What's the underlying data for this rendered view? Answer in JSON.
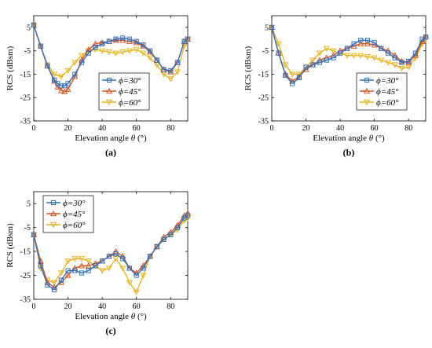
{
  "chart_data": [
    {
      "type": "line",
      "panel_label": "(a)",
      "xlabel_prefix": "Elevation angle ",
      "xlabel_symbol": "θ",
      "xlabel_suffix": " (°)",
      "ylabel": "RCS (dBsm)",
      "xlim": [
        0,
        90
      ],
      "ylim": [
        -35,
        10
      ],
      "xticks": [
        "0",
        "20",
        "40",
        "60",
        "80"
      ],
      "yticks": [
        "-35",
        "-25",
        "-15",
        "-5",
        "5"
      ],
      "legend": "inside-lower-center",
      "series": [
        {
          "name": "ϕ=30°",
          "color": "#2b6fc0",
          "marker": "square",
          "x": [
            0,
            4,
            8,
            12,
            14,
            16,
            18,
            20,
            24,
            28,
            32,
            36,
            40,
            44,
            48,
            52,
            56,
            60,
            64,
            68,
            72,
            76,
            80,
            84,
            88,
            90
          ],
          "y": [
            6,
            -3,
            -11.5,
            -17.5,
            -19,
            -20,
            -20,
            -19,
            -15,
            -10,
            -6,
            -3.5,
            -2,
            -1,
            0,
            0.5,
            0,
            -1,
            -2.5,
            -5,
            -9,
            -13,
            -13.5,
            -10,
            -1,
            0
          ]
        },
        {
          "name": "ϕ=45°",
          "color": "#d9541e",
          "marker": "triangle-up",
          "x": [
            0,
            4,
            8,
            12,
            14,
            16,
            18,
            20,
            24,
            28,
            32,
            36,
            40,
            44,
            48,
            52,
            56,
            60,
            64,
            68,
            72,
            76,
            80,
            84,
            88,
            90
          ],
          "y": [
            6,
            -3,
            -11.5,
            -18,
            -20.5,
            -22,
            -22.5,
            -21.5,
            -16,
            -9,
            -4.5,
            -2,
            -1.5,
            -1,
            -0.5,
            -0.5,
            -1,
            -1.5,
            -3,
            -5.5,
            -9,
            -13,
            -14,
            -10,
            -1,
            0
          ]
        },
        {
          "name": "ϕ=60°",
          "color": "#e8b21a",
          "marker": "triangle-down",
          "x": [
            0,
            4,
            8,
            12,
            16,
            20,
            24,
            28,
            32,
            36,
            40,
            44,
            48,
            52,
            56,
            60,
            64,
            68,
            72,
            76,
            80,
            84,
            88,
            90
          ],
          "y": [
            6,
            -3,
            -11,
            -15,
            -16,
            -13.5,
            -10,
            -7,
            -5,
            -4.5,
            -5,
            -5.5,
            -6,
            -5.5,
            -5,
            -4.5,
            -6,
            -8,
            -11,
            -15,
            -17,
            -14,
            -3,
            0
          ]
        }
      ]
    },
    {
      "type": "line",
      "panel_label": "(b)",
      "xlabel_prefix": "Elevation angle ",
      "xlabel_symbol": "θ",
      "xlabel_suffix": " (°)",
      "ylabel": "RCS (dBsm)",
      "xlim": [
        0,
        90
      ],
      "ylim": [
        -35,
        10
      ],
      "xticks": [
        "0",
        "20",
        "40",
        "60",
        "80"
      ],
      "yticks": [
        "-35",
        "-25",
        "-15",
        "-5",
        "5"
      ],
      "legend": "inside-lower-right",
      "series": [
        {
          "name": "ϕ=30°",
          "color": "#2b6fc0",
          "marker": "square",
          "x": [
            0,
            4,
            8,
            12,
            16,
            20,
            24,
            28,
            32,
            36,
            40,
            44,
            48,
            52,
            56,
            60,
            64,
            68,
            72,
            76,
            80,
            84,
            88,
            90
          ],
          "y": [
            5,
            -6,
            -15.5,
            -19,
            -16.5,
            -12,
            -11,
            -10,
            -9,
            -8,
            -6,
            -4,
            -2,
            -0.5,
            -0.5,
            -1.5,
            -4,
            -6,
            -8,
            -10,
            -9.5,
            -6,
            0,
            1
          ]
        },
        {
          "name": "ϕ=45°",
          "color": "#d9541e",
          "marker": "triangle-up",
          "x": [
            0,
            4,
            8,
            12,
            16,
            20,
            24,
            28,
            32,
            36,
            40,
            44,
            48,
            52,
            56,
            60,
            64,
            68,
            72,
            76,
            80,
            84,
            88,
            90
          ],
          "y": [
            5,
            -6,
            -15,
            -18,
            -16,
            -13,
            -11,
            -9,
            -8,
            -7,
            -5,
            -4,
            -3,
            -2,
            -2,
            -2.5,
            -4,
            -5,
            -7,
            -9.5,
            -10,
            -7,
            -1,
            1
          ]
        },
        {
          "name": "ϕ=60°",
          "color": "#e8b21a",
          "marker": "triangle-down",
          "x": [
            0,
            4,
            8,
            12,
            16,
            20,
            24,
            28,
            32,
            36,
            40,
            44,
            48,
            52,
            56,
            60,
            64,
            68,
            72,
            76,
            80,
            84,
            88,
            90
          ],
          "y": [
            5,
            -2,
            -11,
            -15,
            -15,
            -12,
            -9,
            -6,
            -4,
            -5,
            -6,
            -7,
            -7,
            -7,
            -7.5,
            -8,
            -9,
            -10,
            -11,
            -12.5,
            -12,
            -8,
            -2,
            0
          ]
        }
      ]
    },
    {
      "type": "line",
      "panel_label": "(c)",
      "xlabel_prefix": "Elevation angle ",
      "xlabel_symbol": "θ",
      "xlabel_suffix": " (°)",
      "ylabel": "RCS (dBsm)",
      "xlim": [
        0,
        90
      ],
      "ylim": [
        -35,
        10
      ],
      "xticks": [
        "0",
        "20",
        "40",
        "60",
        "80"
      ],
      "yticks": [
        "-35",
        "-25",
        "-15",
        "-5",
        "5"
      ],
      "legend": "inside-upper-left",
      "series": [
        {
          "name": "ϕ=30°",
          "color": "#2b6fc0",
          "marker": "square",
          "x": [
            0,
            4,
            8,
            12,
            16,
            20,
            24,
            28,
            32,
            36,
            40,
            44,
            48,
            52,
            56,
            60,
            64,
            68,
            72,
            76,
            80,
            84,
            88,
            90
          ],
          "y": [
            -8,
            -21,
            -29,
            -31,
            -27,
            -23,
            -23,
            -24,
            -23,
            -21,
            -19,
            -17,
            -16,
            -18,
            -22,
            -25,
            -22,
            -17,
            -13,
            -10,
            -8,
            -5,
            -1,
            0
          ]
        },
        {
          "name": "ϕ=45°",
          "color": "#d9541e",
          "marker": "triangle-up",
          "x": [
            0,
            4,
            8,
            12,
            16,
            20,
            24,
            28,
            32,
            36,
            40,
            44,
            48,
            52,
            56,
            60,
            64,
            68,
            72,
            76,
            80,
            84,
            88,
            90
          ],
          "y": [
            -8,
            -19,
            -28,
            -30,
            -28,
            -25,
            -22,
            -21,
            -21,
            -20,
            -19,
            -17,
            -15,
            -17,
            -22,
            -24,
            -21,
            -17,
            -13,
            -9,
            -7,
            -4,
            0,
            1
          ]
        },
        {
          "name": "ϕ=60°",
          "color": "#e8b21a",
          "marker": "triangle-down",
          "x": [
            0,
            4,
            8,
            12,
            16,
            20,
            24,
            28,
            32,
            36,
            40,
            44,
            48,
            52,
            56,
            60,
            64,
            68,
            72,
            76,
            80,
            84,
            88,
            90
          ],
          "y": [
            -8,
            -22,
            -27,
            -28,
            -24,
            -19,
            -18,
            -18,
            -19,
            -21,
            -23,
            -22,
            -18,
            -22,
            -28,
            -32,
            -25,
            -17,
            -13,
            -10,
            -8,
            -6,
            -2,
            -1
          ]
        }
      ]
    }
  ]
}
